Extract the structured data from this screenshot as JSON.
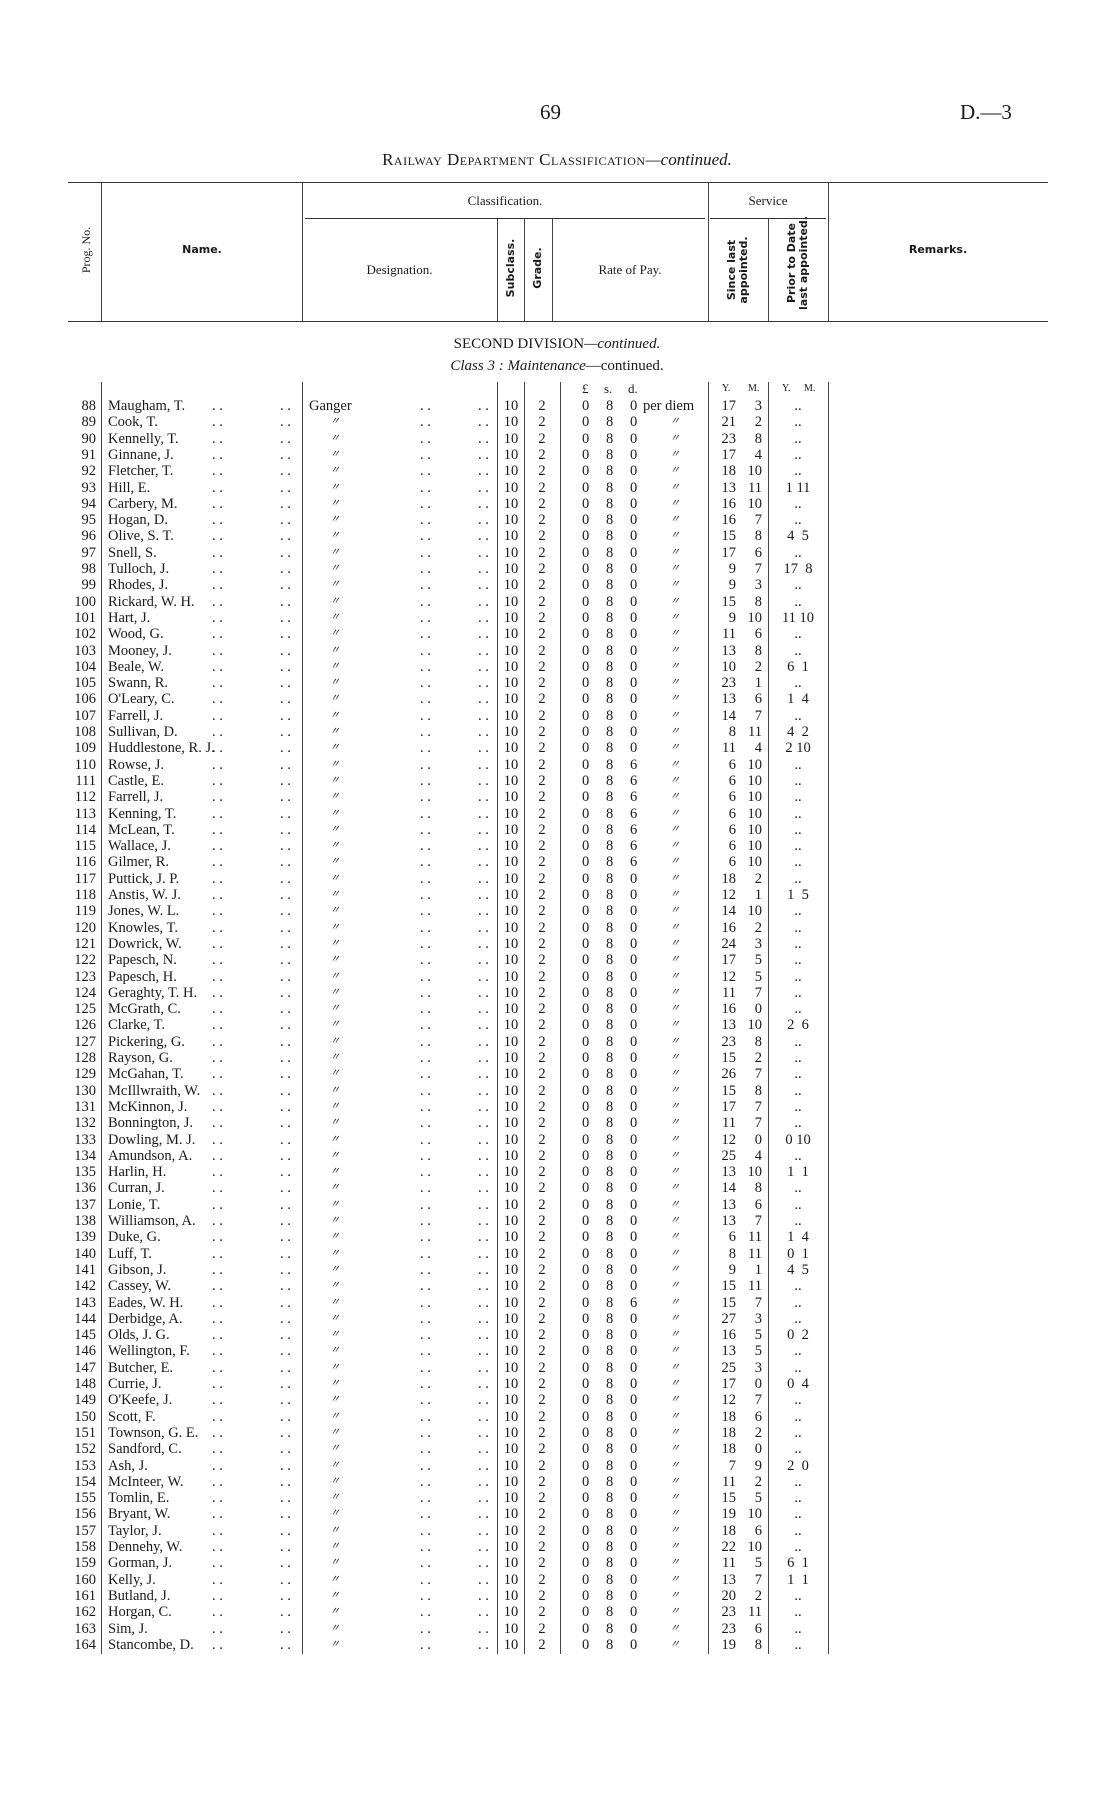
{
  "page_number": "69",
  "doc_ref": "D.—3",
  "title": {
    "main": "Railway Department Classification",
    "suffix": "—continued."
  },
  "headers": {
    "prog_no": "Prog. No.",
    "name": "Name.",
    "classification": "Classification.",
    "designation": "Designation.",
    "subclass": "Subclass.",
    "grade": "Grade.",
    "rate_of_pay": "Rate of Pay.",
    "service": "Service",
    "since_last": "Since last appointed.",
    "prior_to_date": "Prior to Date last appointed.",
    "remarks": "Remarks."
  },
  "section": {
    "division": "SECOND DIVISION",
    "division_suffix": "—continued.",
    "class_label": "Class 3 :",
    "class_name": "Maintenance",
    "class_suffix": "—continued."
  },
  "units": {
    "pounds": "£",
    "shillings": "s.",
    "pence": "d.",
    "years": "Y.",
    "months": "M.",
    "years2": "Y.",
    "months2": "M."
  },
  "leader": ". .",
  "rows": [
    [
      "88",
      "Maugham, T.",
      "Ganger",
      "10",
      "2",
      "0",
      "8",
      "0",
      "per diem",
      "17",
      "3",
      ".."
    ],
    [
      "89",
      "Cook, T.",
      "〃",
      "10",
      "2",
      "0",
      "8",
      "0",
      "〃",
      "21",
      "2",
      ".."
    ],
    [
      "90",
      "Kennelly, T.",
      "〃",
      "10",
      "2",
      "0",
      "8",
      "0",
      "〃",
      "23",
      "8",
      ".."
    ],
    [
      "91",
      "Ginnane, J.",
      "〃",
      "10",
      "2",
      "0",
      "8",
      "0",
      "〃",
      "17",
      "4",
      ".."
    ],
    [
      "92",
      "Fletcher, T.",
      "〃",
      "10",
      "2",
      "0",
      "8",
      "0",
      "〃",
      "18",
      "10",
      ".."
    ],
    [
      "93",
      "Hill, E.",
      "〃",
      "10",
      "2",
      "0",
      "8",
      "0",
      "〃",
      "13",
      "11",
      "1 11"
    ],
    [
      "94",
      "Carbery, M.",
      "〃",
      "10",
      "2",
      "0",
      "8",
      "0",
      "〃",
      "16",
      "10",
      ".."
    ],
    [
      "95",
      "Hogan, D.",
      "〃",
      "10",
      "2",
      "0",
      "8",
      "0",
      "〃",
      "16",
      "7",
      ".."
    ],
    [
      "96",
      "Olive, S. T.",
      "〃",
      "10",
      "2",
      "0",
      "8",
      "0",
      "〃",
      "15",
      "8",
      "4  5"
    ],
    [
      "97",
      "Snell, S.",
      "〃",
      "10",
      "2",
      "0",
      "8",
      "0",
      "〃",
      "17",
      "6",
      ".."
    ],
    [
      "98",
      "Tulloch, J.",
      "〃",
      "10",
      "2",
      "0",
      "8",
      "0",
      "〃",
      "9",
      "7",
      "17  8"
    ],
    [
      "99",
      "Rhodes, J.",
      "〃",
      "10",
      "2",
      "0",
      "8",
      "0",
      "〃",
      "9",
      "3",
      ".."
    ],
    [
      "100",
      "Rickard, W. H.",
      "〃",
      "10",
      "2",
      "0",
      "8",
      "0",
      "〃",
      "15",
      "8",
      ".."
    ],
    [
      "101",
      "Hart, J.",
      "〃",
      "10",
      "2",
      "0",
      "8",
      "0",
      "〃",
      "9",
      "10",
      "11 10"
    ],
    [
      "102",
      "Wood, G.",
      "〃",
      "10",
      "2",
      "0",
      "8",
      "0",
      "〃",
      "11",
      "6",
      ".."
    ],
    [
      "103",
      "Mooney, J.",
      "〃",
      "10",
      "2",
      "0",
      "8",
      "0",
      "〃",
      "13",
      "8",
      ".."
    ],
    [
      "104",
      "Beale, W.",
      "〃",
      "10",
      "2",
      "0",
      "8",
      "0",
      "〃",
      "10",
      "2",
      "6  1"
    ],
    [
      "105",
      "Swann, R.",
      "〃",
      "10",
      "2",
      "0",
      "8",
      "0",
      "〃",
      "23",
      "1",
      ".."
    ],
    [
      "106",
      "O'Leary, C.",
      "〃",
      "10",
      "2",
      "0",
      "8",
      "0",
      "〃",
      "13",
      "6",
      "1  4"
    ],
    [
      "107",
      "Farrell, J.",
      "〃",
      "10",
      "2",
      "0",
      "8",
      "0",
      "〃",
      "14",
      "7",
      ".."
    ],
    [
      "108",
      "Sullivan, D.",
      "〃",
      "10",
      "2",
      "0",
      "8",
      "0",
      "〃",
      "8",
      "11",
      "4  2"
    ],
    [
      "109",
      "Huddlestone, R. J.",
      "〃",
      "10",
      "2",
      "0",
      "8",
      "0",
      "〃",
      "11",
      "4",
      "2 10"
    ],
    [
      "110",
      "Rowse, J.",
      "〃",
      "10",
      "2",
      "0",
      "8",
      "6",
      "〃",
      "6",
      "10",
      ".."
    ],
    [
      "111",
      "Castle, E.",
      "〃",
      "10",
      "2",
      "0",
      "8",
      "6",
      "〃",
      "6",
      "10",
      ".."
    ],
    [
      "112",
      "Farrell, J.",
      "〃",
      "10",
      "2",
      "0",
      "8",
      "6",
      "〃",
      "6",
      "10",
      ".."
    ],
    [
      "113",
      "Kenning, T.",
      "〃",
      "10",
      "2",
      "0",
      "8",
      "6",
      "〃",
      "6",
      "10",
      ".."
    ],
    [
      "114",
      "McLean, T.",
      "〃",
      "10",
      "2",
      "0",
      "8",
      "6",
      "〃",
      "6",
      "10",
      ".."
    ],
    [
      "115",
      "Wallace, J.",
      "〃",
      "10",
      "2",
      "0",
      "8",
      "6",
      "〃",
      "6",
      "10",
      ".."
    ],
    [
      "116",
      "Gilmer, R.",
      "〃",
      "10",
      "2",
      "0",
      "8",
      "6",
      "〃",
      "6",
      "10",
      ".."
    ],
    [
      "117",
      "Puttick, J. P.",
      "〃",
      "10",
      "2",
      "0",
      "8",
      "0",
      "〃",
      "18",
      "2",
      ".."
    ],
    [
      "118",
      "Anstis, W. J.",
      "〃",
      "10",
      "2",
      "0",
      "8",
      "0",
      "〃",
      "12",
      "1",
      "1  5"
    ],
    [
      "119",
      "Jones, W. L.",
      "〃",
      "10",
      "2",
      "0",
      "8",
      "0",
      "〃",
      "14",
      "10",
      ".."
    ],
    [
      "120",
      "Knowles, T.",
      "〃",
      "10",
      "2",
      "0",
      "8",
      "0",
      "〃",
      "16",
      "2",
      ".."
    ],
    [
      "121",
      "Dowrick, W.",
      "〃",
      "10",
      "2",
      "0",
      "8",
      "0",
      "〃",
      "24",
      "3",
      ".."
    ],
    [
      "122",
      "Papesch, N.",
      "〃",
      "10",
      "2",
      "0",
      "8",
      "0",
      "〃",
      "17",
      "5",
      ".."
    ],
    [
      "123",
      "Papesch, H.",
      "〃",
      "10",
      "2",
      "0",
      "8",
      "0",
      "〃",
      "12",
      "5",
      ".."
    ],
    [
      "124",
      "Geraghty, T. H.",
      "〃",
      "10",
      "2",
      "0",
      "8",
      "0",
      "〃",
      "11",
      "7",
      ".."
    ],
    [
      "125",
      "McGrath, C.",
      "〃",
      "10",
      "2",
      "0",
      "8",
      "0",
      "〃",
      "16",
      "0",
      ".."
    ],
    [
      "126",
      "Clarke, T.",
      "〃",
      "10",
      "2",
      "0",
      "8",
      "0",
      "〃",
      "13",
      "10",
      "2  6"
    ],
    [
      "127",
      "Pickering, G.",
      "〃",
      "10",
      "2",
      "0",
      "8",
      "0",
      "〃",
      "23",
      "8",
      ".."
    ],
    [
      "128",
      "Rayson, G.",
      "〃",
      "10",
      "2",
      "0",
      "8",
      "0",
      "〃",
      "15",
      "2",
      ".."
    ],
    [
      "129",
      "McGahan, T.",
      "〃",
      "10",
      "2",
      "0",
      "8",
      "0",
      "〃",
      "26",
      "7",
      ".."
    ],
    [
      "130",
      "McIllwraith, W.",
      "〃",
      "10",
      "2",
      "0",
      "8",
      "0",
      "〃",
      "15",
      "8",
      ".."
    ],
    [
      "131",
      "McKinnon, J.",
      "〃",
      "10",
      "2",
      "0",
      "8",
      "0",
      "〃",
      "17",
      "7",
      ".."
    ],
    [
      "132",
      "Bonnington, J.",
      "〃",
      "10",
      "2",
      "0",
      "8",
      "0",
      "〃",
      "11",
      "7",
      ".."
    ],
    [
      "133",
      "Dowling, M. J.",
      "〃",
      "10",
      "2",
      "0",
      "8",
      "0",
      "〃",
      "12",
      "0",
      "0 10"
    ],
    [
      "134",
      "Amundson, A.",
      "〃",
      "10",
      "2",
      "0",
      "8",
      "0",
      "〃",
      "25",
      "4",
      ".."
    ],
    [
      "135",
      "Harlin, H.",
      "〃",
      "10",
      "2",
      "0",
      "8",
      "0",
      "〃",
      "13",
      "10",
      "1  1"
    ],
    [
      "136",
      "Curran, J.",
      "〃",
      "10",
      "2",
      "0",
      "8",
      "0",
      "〃",
      "14",
      "8",
      ".."
    ],
    [
      "137",
      "Lonie, T.",
      "〃",
      "10",
      "2",
      "0",
      "8",
      "0",
      "〃",
      "13",
      "6",
      ".."
    ],
    [
      "138",
      "Williamson, A.",
      "〃",
      "10",
      "2",
      "0",
      "8",
      "0",
      "〃",
      "13",
      "7",
      ".."
    ],
    [
      "139",
      "Duke, G.",
      "〃",
      "10",
      "2",
      "0",
      "8",
      "0",
      "〃",
      "6",
      "11",
      "1  4"
    ],
    [
      "140",
      "Luff, T.",
      "〃",
      "10",
      "2",
      "0",
      "8",
      "0",
      "〃",
      "8",
      "11",
      "0  1"
    ],
    [
      "141",
      "Gibson, J.",
      "〃",
      "10",
      "2",
      "0",
      "8",
      "0",
      "〃",
      "9",
      "1",
      "4  5"
    ],
    [
      "142",
      "Cassey, W.",
      "〃",
      "10",
      "2",
      "0",
      "8",
      "0",
      "〃",
      "15",
      "11",
      ".."
    ],
    [
      "143",
      "Eades, W. H.",
      "〃",
      "10",
      "2",
      "0",
      "8",
      "6",
      "〃",
      "15",
      "7",
      ".."
    ],
    [
      "144",
      "Derbidge, A.",
      "〃",
      "10",
      "2",
      "0",
      "8",
      "0",
      "〃",
      "27",
      "3",
      ".."
    ],
    [
      "145",
      "Olds, J. G.",
      "〃",
      "10",
      "2",
      "0",
      "8",
      "0",
      "〃",
      "16",
      "5",
      "0  2"
    ],
    [
      "146",
      "Wellington, F.",
      "〃",
      "10",
      "2",
      "0",
      "8",
      "0",
      "〃",
      "13",
      "5",
      ".."
    ],
    [
      "147",
      "Butcher, E.",
      "〃",
      "10",
      "2",
      "0",
      "8",
      "0",
      "〃",
      "25",
      "3",
      ".."
    ],
    [
      "148",
      "Currie, J.",
      "〃",
      "10",
      "2",
      "0",
      "8",
      "0",
      "〃",
      "17",
      "0",
      "0  4"
    ],
    [
      "149",
      "O'Keefe, J.",
      "〃",
      "10",
      "2",
      "0",
      "8",
      "0",
      "〃",
      "12",
      "7",
      ".."
    ],
    [
      "150",
      "Scott, F.",
      "〃",
      "10",
      "2",
      "0",
      "8",
      "0",
      "〃",
      "18",
      "6",
      ".."
    ],
    [
      "151",
      "Townson, G. E.",
      "〃",
      "10",
      "2",
      "0",
      "8",
      "0",
      "〃",
      "18",
      "2",
      ".."
    ],
    [
      "152",
      "Sandford, C.",
      "〃",
      "10",
      "2",
      "0",
      "8",
      "0",
      "〃",
      "18",
      "0",
      ".."
    ],
    [
      "153",
      "Ash, J.",
      "〃",
      "10",
      "2",
      "0",
      "8",
      "0",
      "〃",
      "7",
      "9",
      "2  0"
    ],
    [
      "154",
      "McInteer, W.",
      "〃",
      "10",
      "2",
      "0",
      "8",
      "0",
      "〃",
      "11",
      "2",
      ".."
    ],
    [
      "155",
      "Tomlin, E.",
      "〃",
      "10",
      "2",
      "0",
      "8",
      "0",
      "〃",
      "15",
      "5",
      ".."
    ],
    [
      "156",
      "Bryant, W.",
      "〃",
      "10",
      "2",
      "0",
      "8",
      "0",
      "〃",
      "19",
      "10",
      ".."
    ],
    [
      "157",
      "Taylor, J.",
      "〃",
      "10",
      "2",
      "0",
      "8",
      "0",
      "〃",
      "18",
      "6",
      ".."
    ],
    [
      "158",
      "Dennehy, W.",
      "〃",
      "10",
      "2",
      "0",
      "8",
      "0",
      "〃",
      "22",
      "10",
      ".."
    ],
    [
      "159",
      "Gorman, J.",
      "〃",
      "10",
      "2",
      "0",
      "8",
      "0",
      "〃",
      "11",
      "5",
      "6  1"
    ],
    [
      "160",
      "Kelly, J.",
      "〃",
      "10",
      "2",
      "0",
      "8",
      "0",
      "〃",
      "13",
      "7",
      "1  1"
    ],
    [
      "161",
      "Butland, J.",
      "〃",
      "10",
      "2",
      "0",
      "8",
      "0",
      "〃",
      "20",
      "2",
      ".."
    ],
    [
      "162",
      "Horgan, C.",
      "〃",
      "10",
      "2",
      "0",
      "8",
      "0",
      "〃",
      "23",
      "11",
      ".."
    ],
    [
      "163",
      "Sim, J.",
      "〃",
      "10",
      "2",
      "0",
      "8",
      "0",
      "〃",
      "23",
      "6",
      ".."
    ],
    [
      "164",
      "Stancombe, D.",
      "〃",
      "10",
      "2",
      "0",
      "8",
      "0",
      "〃",
      "19",
      "8",
      ".."
    ]
  ]
}
